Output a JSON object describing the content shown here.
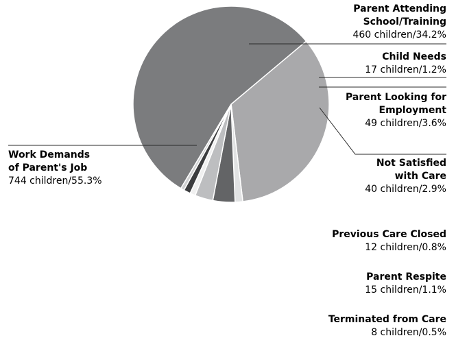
{
  "chart_data": {
    "type": "pie",
    "slices": [
      {
        "name": "Parent Attending School/Training",
        "label_lines": [
          "Parent Attending",
          "School/Training"
        ],
        "value_text": "460 children/34.2%",
        "children": 460,
        "percent": 34.2,
        "color": "#a9a9ab"
      },
      {
        "name": "Child Needs",
        "label_lines": [
          "Child Needs"
        ],
        "value_text": "17 children/1.2%",
        "children": 17,
        "percent": 1.2,
        "color": "#e1e2e3"
      },
      {
        "name": "Parent Looking for Employment",
        "label_lines": [
          "Parent Looking for",
          "Employment"
        ],
        "value_text": "49 children/3.6%",
        "children": 49,
        "percent": 3.6,
        "color": "#636466"
      },
      {
        "name": "Not Satisfied with Care",
        "label_lines": [
          "Not Satisfied",
          "with Care"
        ],
        "value_text": "40 children/2.9%",
        "children": 40,
        "percent": 2.9,
        "color": "#bdbec0"
      },
      {
        "name": "Previous Care Closed",
        "label_lines": [
          "Previous Care Closed"
        ],
        "value_text": "12 children/0.8%",
        "children": 12,
        "percent": 0.8,
        "color": "#f0f0f0"
      },
      {
        "name": "Parent Respite",
        "label_lines": [
          "Parent Respite"
        ],
        "value_text": "15 children/1.1%",
        "children": 15,
        "percent": 1.1,
        "color": "#3c3d3f"
      },
      {
        "name": "Terminated from Care",
        "label_lines": [
          "Terminated from Care"
        ],
        "value_text": "8 children/0.5%",
        "children": 8,
        "percent": 0.5,
        "color": "#d0d1d2"
      },
      {
        "name": "Work Demands of Parent's Job",
        "label_lines": [
          "Work Demands",
          "of Parent's Job"
        ],
        "value_text": "744 children/55.3%",
        "children": 744,
        "percent": 55.3,
        "color": "#7b7c7e"
      }
    ],
    "start_angle_deg": -40,
    "legend": "callout labels"
  }
}
